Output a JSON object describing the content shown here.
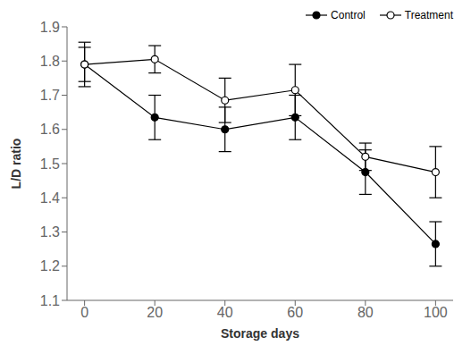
{
  "chart_data": {
    "type": "line",
    "xlabel": "Storage days",
    "ylabel": "L/D ratio",
    "x": [
      0,
      20,
      40,
      60,
      80,
      100
    ],
    "series": [
      {
        "name": "Control",
        "color": "#000000",
        "marker": "filled_circle",
        "values": [
          1.79,
          1.635,
          1.6,
          1.635,
          1.475,
          1.265
        ],
        "errors": [
          0.05,
          0.065,
          0.065,
          0.065,
          0.065,
          0.065
        ]
      },
      {
        "name": "Treatment",
        "color": "#000000",
        "marker": "open_circle",
        "values": [
          1.79,
          1.805,
          1.685,
          1.715,
          1.52,
          1.475
        ],
        "errors": [
          0.065,
          0.04,
          0.065,
          0.075,
          0.04,
          0.075
        ]
      }
    ],
    "xlim": [
      -5,
      105
    ],
    "xticks": [
      0,
      20,
      40,
      60,
      80,
      100
    ],
    "ylim": [
      1.1,
      1.9
    ],
    "yticks": [
      1.1,
      1.2,
      1.3,
      1.4,
      1.5,
      1.6,
      1.7,
      1.8,
      1.9
    ],
    "legend": "upper right"
  }
}
